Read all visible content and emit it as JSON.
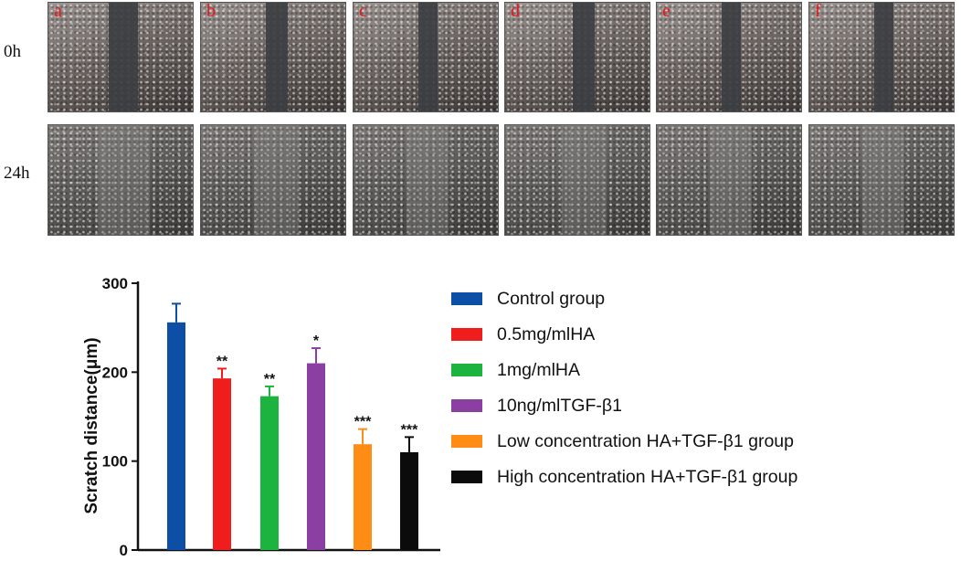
{
  "rows": {
    "top_label": "0h",
    "bottom_label": "24h"
  },
  "panels": [
    {
      "letter": "a",
      "scratch": [
        0.42,
        0.62
      ]
    },
    {
      "letter": "b",
      "scratch": [
        0.45,
        0.6
      ]
    },
    {
      "letter": "c",
      "scratch": [
        0.45,
        0.58
      ]
    },
    {
      "letter": "d",
      "scratch": [
        0.47,
        0.62
      ]
    },
    {
      "letter": "e",
      "scratch": [
        0.45,
        0.58
      ]
    },
    {
      "letter": "f",
      "scratch": [
        0.45,
        0.58
      ]
    }
  ],
  "chart_data": {
    "type": "bar",
    "ylabel": "Scratch distance(μm)",
    "xlabel": "",
    "ylim": [
      0,
      300
    ],
    "yticks": [
      0,
      100,
      200,
      300
    ],
    "categories": [
      "Control group",
      "0.5mg/mlHA",
      "1mg/mlHA",
      "10ng/mlTGF-β1",
      "Low concentration HA+TGF-β1 group",
      "High concentration HA+TGF-β1 group"
    ],
    "values": [
      256,
      193,
      173,
      210,
      119,
      110
    ],
    "errors": [
      21,
      11,
      11,
      17,
      17,
      17
    ],
    "significance": [
      "",
      "**",
      "**",
      "*",
      "***",
      "***"
    ],
    "colors": [
      "#0d4ea6",
      "#f01d1d",
      "#1db33f",
      "#8b3fa3",
      "#ff8c14",
      "#0b0b0b"
    ],
    "legend_position": "right"
  }
}
